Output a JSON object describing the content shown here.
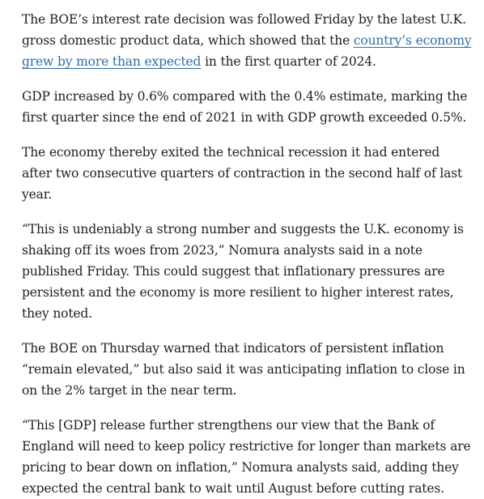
{
  "article": {
    "paragraphs": [
      {
        "before": "The BOE’s interest rate decision was followed Friday by the latest U.K. gross domestic product data, which showed that the ",
        "link": "country’s economy grew by more than expected",
        "after": " in the first quarter of 2024."
      },
      {
        "text": "GDP increased by 0.6% compared with the 0.4% estimate, marking the first quarter since the end of 2021 in with GDP growth exceeded 0.5%."
      },
      {
        "text": "The economy thereby exited the technical recession it had entered after two consecutive quarters of contraction in the second half of last year."
      },
      {
        "text": "“This is undeniably a strong number and suggests the U.K. economy is shaking off its woes from 2023,” Nomura analysts said in a note published Friday. This could suggest that inflationary pressures are persistent and the economy is more resilient to higher interest rates, they noted."
      },
      {
        "text": "The BOE on Thursday warned that indicators of persistent inflation “remain elevated,” but also said it was anticipating inflation to close in on the 2% target in the near term."
      },
      {
        "text": "“This [GDP] release further strengthens our view that the Bank of England will need to keep policy restrictive for longer than markets are pricing to bear down on inflation,” Nomura analysts said, adding they expected the central bank to wait until August before cutting rates."
      }
    ]
  }
}
